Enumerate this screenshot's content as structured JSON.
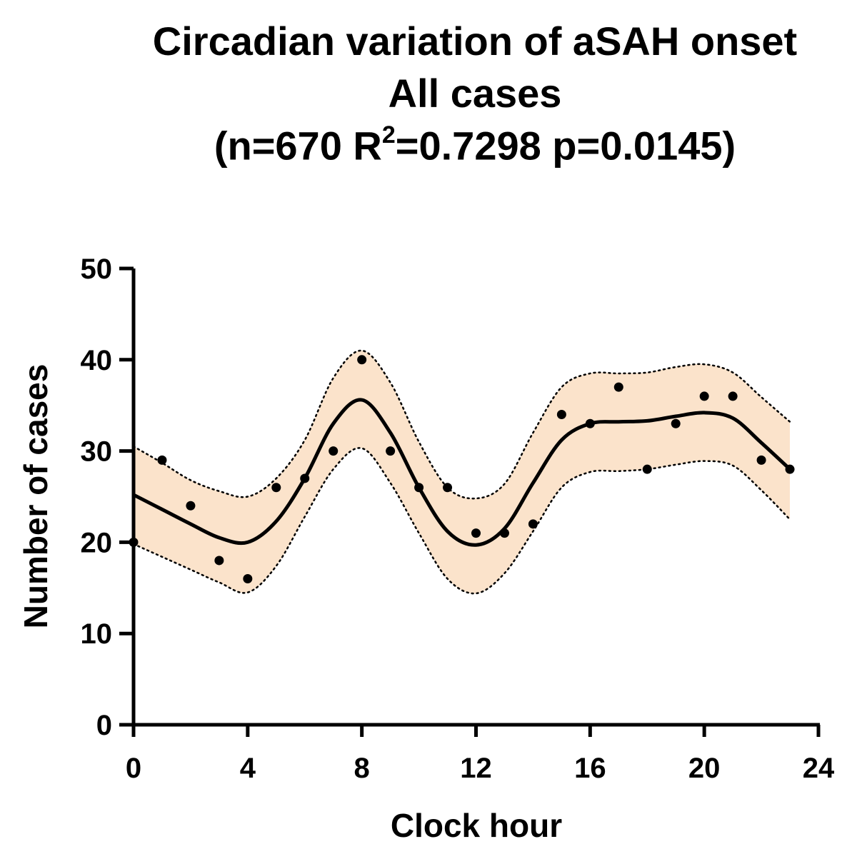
{
  "chart_data": {
    "type": "scatter",
    "title_line1": "Circadian variation of aSAH onset",
    "title_line2": "All cases",
    "title_line3_prefix": "(n=670 R",
    "title_line3_sup": "2",
    "title_line3_suffix": "=0.7298 p=0.0145)",
    "xlabel": "Clock hour",
    "ylabel": "Number of cases",
    "xlim": [
      0,
      24
    ],
    "ylim": [
      0,
      50
    ],
    "xticks": [
      0,
      4,
      8,
      12,
      16,
      20,
      24
    ],
    "yticks": [
      0,
      10,
      20,
      30,
      40,
      50
    ],
    "points": {
      "x": [
        0,
        1,
        2,
        3,
        4,
        5,
        6,
        7,
        8,
        9,
        10,
        11,
        12,
        13,
        14,
        15,
        16,
        17,
        18,
        19,
        20,
        21,
        22,
        23
      ],
      "y": [
        20,
        29,
        24,
        18,
        16,
        26,
        27,
        30,
        40,
        30,
        26,
        26,
        21,
        21,
        22,
        34,
        33,
        37,
        28,
        33,
        36,
        36,
        29,
        28
      ]
    },
    "fit_curve": {
      "x": [
        0,
        1,
        2,
        3,
        4,
        5,
        6,
        7,
        8,
        9,
        10,
        11,
        12,
        13,
        14,
        15,
        16,
        17,
        18,
        19,
        20,
        21,
        22,
        23
      ],
      "y": [
        25.2,
        23.6,
        22.0,
        20.5,
        20.0,
        22.3,
        27.0,
        33.0,
        35.6,
        32.0,
        26.0,
        21.2,
        19.7,
        21.5,
        26.5,
        31.2,
        33.0,
        33.2,
        33.3,
        33.8,
        34.2,
        33.6,
        30.9,
        28.0
      ]
    },
    "confidence_band": {
      "upper": [
        30.5,
        28.7,
        26.8,
        25.6,
        25.0,
        27.0,
        31.2,
        38.0,
        41.0,
        37.5,
        31.0,
        26.0,
        24.8,
        26.4,
        32.0,
        37.0,
        38.5,
        38.5,
        38.6,
        39.2,
        39.5,
        38.6,
        35.9,
        33.2
      ],
      "lower": [
        19.8,
        18.4,
        17.0,
        15.6,
        14.5,
        17.4,
        22.8,
        28.0,
        30.3,
        26.5,
        21.0,
        16.0,
        14.4,
        16.6,
        21.2,
        26.0,
        27.7,
        27.8,
        28.0,
        28.5,
        28.9,
        28.4,
        25.7,
        22.5
      ]
    },
    "colors": {
      "band_fill": "#fbe3cb",
      "line": "#000000",
      "points": "#000000"
    }
  }
}
